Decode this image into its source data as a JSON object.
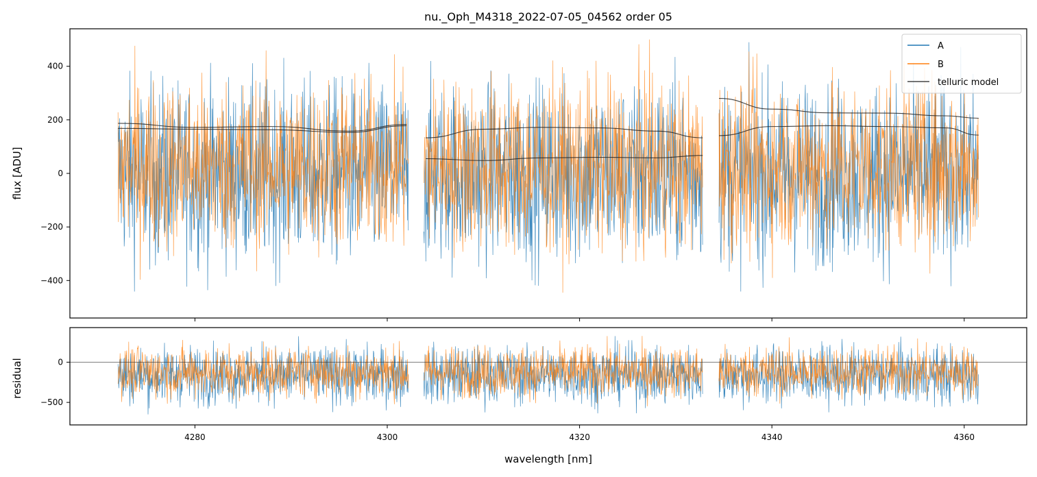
{
  "chart_data": {
    "type": "line",
    "title": "nu._Oph_M4318_2022-07-05_04562  order 05",
    "xlabel": "wavelength [nm]",
    "xlim": [
      4267,
      4366.5
    ],
    "xticks": [
      4280,
      4300,
      4320,
      4340,
      4360
    ],
    "colors": {
      "A": "#1f77b4",
      "B": "#ff7f0e",
      "telluric": "#222222"
    },
    "segments": [
      [
        4272,
        4302.2
      ],
      [
        4303.8,
        4332.8
      ],
      [
        4334.5,
        4361.5
      ]
    ],
    "legend": {
      "position": "upper right",
      "entries": [
        "A",
        "B",
        "telluric model"
      ]
    },
    "top_panel": {
      "ylabel": "flux [ADU]",
      "ylim": [
        -540,
        540
      ],
      "yticks": [
        -400,
        -200,
        0,
        200,
        400
      ],
      "series": [
        {
          "name": "A",
          "center": 0,
          "spread": 170
        },
        {
          "name": "B",
          "center": 30,
          "spread": 160
        }
      ],
      "telluric_models": [
        {
          "x": [
            4272,
            4280,
            4288,
            4296,
            4302
          ],
          "y": [
            187,
            172,
            175,
            158,
            183
          ]
        },
        {
          "x": [
            4272,
            4280,
            4288,
            4296,
            4302
          ],
          "y": [
            168,
            165,
            163,
            153,
            178
          ]
        },
        {
          "x": [
            4304,
            4310,
            4316,
            4322,
            4328,
            4332.8
          ],
          "y": [
            133,
            165,
            172,
            170,
            158,
            133
          ]
        },
        {
          "x": [
            4304,
            4310,
            4316,
            4322,
            4328,
            4332.8
          ],
          "y": [
            55,
            48,
            58,
            60,
            58,
            67
          ]
        },
        {
          "x": [
            4334.5,
            4340,
            4346,
            4352,
            4358,
            4361.5
          ],
          "y": [
            280,
            240,
            226,
            225,
            215,
            206
          ]
        },
        {
          "x": [
            4334.5,
            4340,
            4346,
            4352,
            4358,
            4361.5
          ],
          "y": [
            141,
            175,
            178,
            175,
            170,
            143
          ]
        }
      ]
    },
    "bottom_panel": {
      "ylabel": "residual",
      "ylim": [
        -780,
        430
      ],
      "yticks": [
        -500,
        0
      ],
      "zero_line": 0,
      "series": [
        {
          "name": "A",
          "center": -160,
          "spread": 180
        },
        {
          "name": "B",
          "center": -120,
          "spread": 160
        }
      ]
    }
  }
}
